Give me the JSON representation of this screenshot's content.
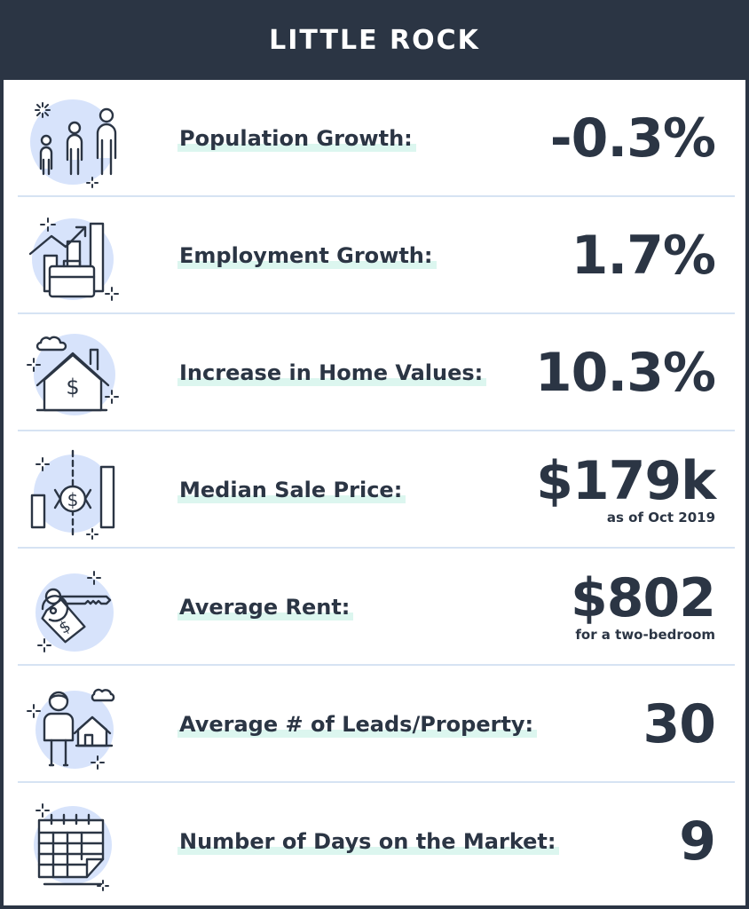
{
  "header": {
    "title": "LITTLE ROCK"
  },
  "stats": [
    {
      "label": "Population Growth:",
      "value": "-0.3%",
      "note": "",
      "icon": "people-icon"
    },
    {
      "label": "Employment Growth:",
      "value": "1.7%",
      "note": "",
      "icon": "briefcase-chart-icon"
    },
    {
      "label": "Increase in Home Values:",
      "value": "10.3%",
      "note": "",
      "icon": "house-dollar-icon"
    },
    {
      "label": "Median Sale Price:",
      "value": "$179k",
      "note": "as of Oct 2019",
      "icon": "price-chart-icon"
    },
    {
      "label": "Average Rent:",
      "value": "$802",
      "note": "for a two-bedroom",
      "icon": "key-tag-icon"
    },
    {
      "label": "Average # of Leads/Property:",
      "value": "30",
      "note": "",
      "icon": "person-house-icon"
    },
    {
      "label": "Number of Days on the Market:",
      "value": "9",
      "note": "",
      "icon": "calendar-icon"
    }
  ],
  "colors": {
    "background": "#2b3544",
    "card": "#ffffff",
    "text": "#2b3544",
    "highlight": "#dcf6ef",
    "iconFill": "#d7e3fb",
    "divider": "#d6e3f3"
  }
}
